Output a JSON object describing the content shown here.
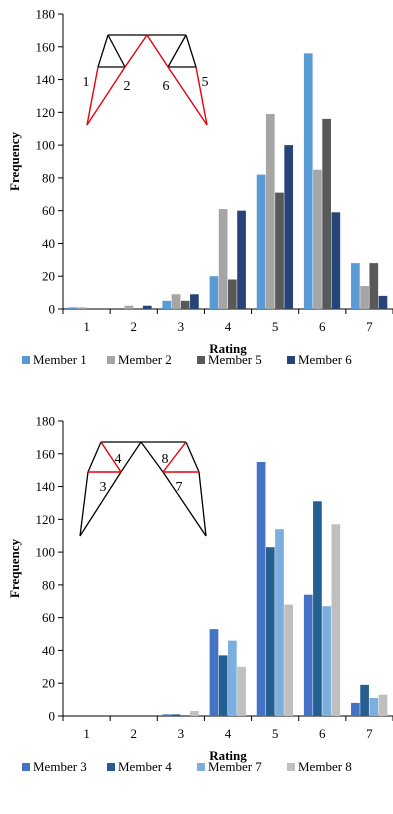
{
  "chart_data": [
    {
      "type": "bar",
      "categories": [
        "1",
        "2",
        "3",
        "4",
        "5",
        "6",
        "7"
      ],
      "xlabel": "Rating",
      "ylabel": "Frequency",
      "ylim": [
        0,
        180
      ],
      "yticks": [
        0,
        20,
        40,
        60,
        80,
        100,
        120,
        140,
        160,
        180
      ],
      "grid": false,
      "legend": "bottom",
      "series": [
        {
          "name": "Member 1",
          "color": "#5b9bd5",
          "values": [
            1,
            0,
            5,
            20,
            82,
            156,
            28
          ]
        },
        {
          "name": "Member 2",
          "color": "#a5a5a5",
          "values": [
            1,
            2,
            9,
            61,
            119,
            85,
            14
          ]
        },
        {
          "name": "Member 5",
          "color": "#595959",
          "values": [
            0,
            0,
            5,
            18,
            71,
            116,
            28
          ]
        },
        {
          "name": "Member 6",
          "color": "#264478",
          "values": [
            0,
            2,
            9,
            60,
            100,
            59,
            8
          ]
        }
      ],
      "diagram": {
        "labels": [
          "1",
          "2",
          "6",
          "5"
        ],
        "highlight_color": "#e8000b"
      }
    },
    {
      "type": "bar",
      "categories": [
        "1",
        "2",
        "3",
        "4",
        "5",
        "6",
        "7"
      ],
      "xlabel": "Rating",
      "ylabel": "Frequency",
      "ylim": [
        0,
        180
      ],
      "yticks": [
        0,
        20,
        40,
        60,
        80,
        100,
        120,
        140,
        160,
        180
      ],
      "grid": false,
      "legend": "bottom",
      "series": [
        {
          "name": "Member 3",
          "color": "#4472c4",
          "values": [
            0,
            0,
            1,
            53,
            155,
            74,
            8
          ]
        },
        {
          "name": "Member 4",
          "color": "#255e91",
          "values": [
            0,
            0,
            1,
            37,
            103,
            131,
            19
          ]
        },
        {
          "name": "Member 7",
          "color": "#7cafdd",
          "values": [
            0,
            0,
            0,
            46,
            114,
            67,
            11
          ]
        },
        {
          "name": "Member 8",
          "color": "#bfbfbf",
          "values": [
            0,
            0,
            3,
            30,
            68,
            117,
            13
          ]
        }
      ],
      "diagram": {
        "labels": [
          "4",
          "3",
          "8",
          "7"
        ],
        "highlight_color": "#e8000b"
      }
    }
  ]
}
